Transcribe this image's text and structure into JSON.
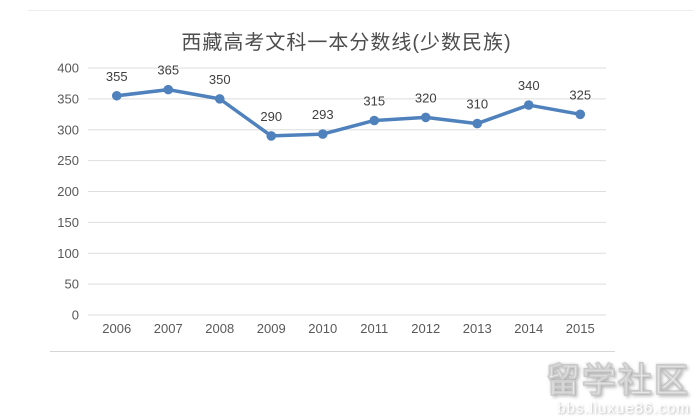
{
  "chart_data": {
    "type": "line",
    "title": "西藏高考文科一本分数线(少数民族)",
    "categories": [
      "2006",
      "2007",
      "2008",
      "2009",
      "2010",
      "2011",
      "2012",
      "2013",
      "2014",
      "2015"
    ],
    "values": [
      355,
      365,
      350,
      290,
      293,
      315,
      320,
      310,
      340,
      325
    ],
    "xlabel": "",
    "ylabel": "",
    "ylim": [
      0,
      400
    ],
    "ytick_step": 50,
    "grid": "horizontal",
    "legend": "none",
    "data_labels": true,
    "line_color": "#4f81bd",
    "grid_color": "#dedede",
    "tick_color": "#595959",
    "label_color": "#3f3f3f"
  },
  "watermark": {
    "brand": "留学社区",
    "url": "bbs.liuxue86.com"
  }
}
